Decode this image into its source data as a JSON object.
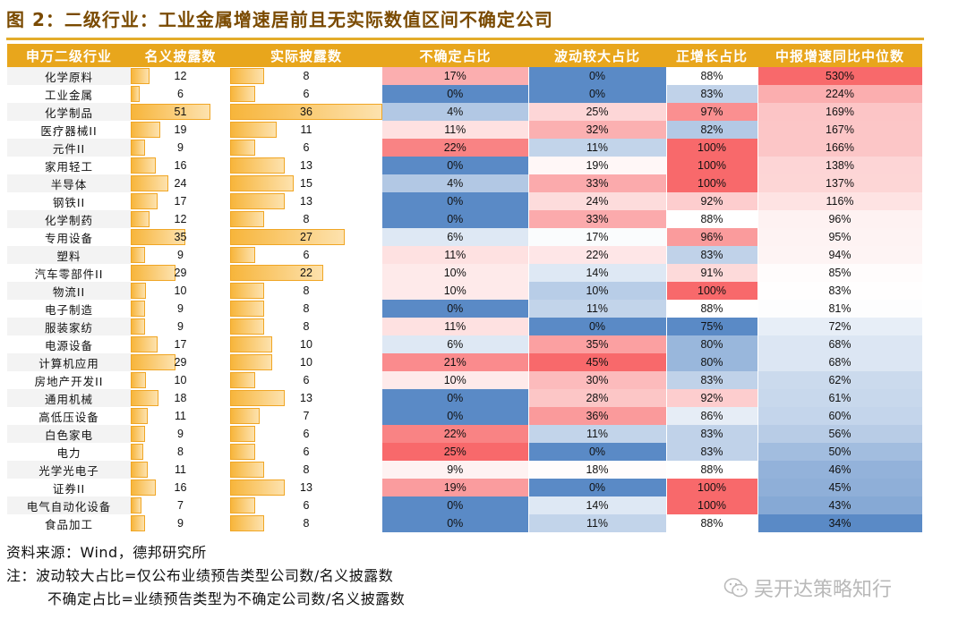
{
  "figure_title": "图 2：二级行业：工业金属增速居前且无实际数值区间不确定公司",
  "footer": {
    "source": "资料来源：Wind，德邦研究所",
    "note1": "注：波动较大占比=仅公布业绩预告类型公司数/名义披露数",
    "note2": "不确定占比=业绩预告类型为不确定公司数/名义披露数"
  },
  "watermark": "吴开达策略知行",
  "colors": {
    "header_bg": "#e8a61c",
    "bar": "#f7b53b",
    "title": "#7a4a00",
    "high": "#f8696b",
    "mid": "#ffffff",
    "low": "#5a8ac6"
  },
  "chart_data": {
    "type": "table",
    "title": "二级行业：工业金属增速居前且无实际数值区间不确定公司",
    "columns": [
      "申万二级行业",
      "名义披露数",
      "实际披露数",
      "不确定占比",
      "波动较大占比",
      "正增长占比",
      "中报增速同比中位数"
    ],
    "rows": [
      {
        "industry": "化学原料",
        "nominal": 12,
        "actual": 8,
        "uncertain": 17,
        "volatile": 0,
        "positive": 88,
        "median": 530
      },
      {
        "industry": "工业金属",
        "nominal": 6,
        "actual": 6,
        "uncertain": 0,
        "volatile": 0,
        "positive": 83,
        "median": 224
      },
      {
        "industry": "化学制品",
        "nominal": 51,
        "actual": 36,
        "uncertain": 4,
        "volatile": 25,
        "positive": 97,
        "median": 169
      },
      {
        "industry": "医疗器械II",
        "nominal": 19,
        "actual": 11,
        "uncertain": 11,
        "volatile": 32,
        "positive": 82,
        "median": 167
      },
      {
        "industry": "元件II",
        "nominal": 9,
        "actual": 6,
        "uncertain": 22,
        "volatile": 11,
        "positive": 100,
        "median": 166
      },
      {
        "industry": "家用轻工",
        "nominal": 16,
        "actual": 13,
        "uncertain": 0,
        "volatile": 19,
        "positive": 100,
        "median": 138
      },
      {
        "industry": "半导体",
        "nominal": 24,
        "actual": 15,
        "uncertain": 4,
        "volatile": 33,
        "positive": 100,
        "median": 137
      },
      {
        "industry": "钢铁II",
        "nominal": 17,
        "actual": 13,
        "uncertain": 0,
        "volatile": 24,
        "positive": 92,
        "median": 116
      },
      {
        "industry": "化学制药",
        "nominal": 12,
        "actual": 8,
        "uncertain": 0,
        "volatile": 33,
        "positive": 88,
        "median": 96
      },
      {
        "industry": "专用设备",
        "nominal": 35,
        "actual": 27,
        "uncertain": 6,
        "volatile": 17,
        "positive": 96,
        "median": 95
      },
      {
        "industry": "塑料",
        "nominal": 9,
        "actual": 6,
        "uncertain": 11,
        "volatile": 22,
        "positive": 83,
        "median": 94
      },
      {
        "industry": "汽车零部件II",
        "nominal": 29,
        "actual": 22,
        "uncertain": 10,
        "volatile": 14,
        "positive": 91,
        "median": 85
      },
      {
        "industry": "物流II",
        "nominal": 10,
        "actual": 8,
        "uncertain": 10,
        "volatile": 10,
        "positive": 100,
        "median": 83
      },
      {
        "industry": "电子制造",
        "nominal": 9,
        "actual": 8,
        "uncertain": 0,
        "volatile": 11,
        "positive": 88,
        "median": 81
      },
      {
        "industry": "服装家纺",
        "nominal": 9,
        "actual": 8,
        "uncertain": 11,
        "volatile": 0,
        "positive": 75,
        "median": 72
      },
      {
        "industry": "电源设备",
        "nominal": 17,
        "actual": 10,
        "uncertain": 6,
        "volatile": 35,
        "positive": 80,
        "median": 68
      },
      {
        "industry": "计算机应用",
        "nominal": 29,
        "actual": 10,
        "uncertain": 21,
        "volatile": 45,
        "positive": 80,
        "median": 68
      },
      {
        "industry": "房地产开发II",
        "nominal": 10,
        "actual": 6,
        "uncertain": 10,
        "volatile": 30,
        "positive": 83,
        "median": 62
      },
      {
        "industry": "通用机械",
        "nominal": 18,
        "actual": 13,
        "uncertain": 0,
        "volatile": 28,
        "positive": 92,
        "median": 61
      },
      {
        "industry": "高低压设备",
        "nominal": 11,
        "actual": 7,
        "uncertain": 0,
        "volatile": 36,
        "positive": 86,
        "median": 60
      },
      {
        "industry": "白色家电",
        "nominal": 9,
        "actual": 6,
        "uncertain": 22,
        "volatile": 11,
        "positive": 83,
        "median": 56
      },
      {
        "industry": "电力",
        "nominal": 8,
        "actual": 6,
        "uncertain": 25,
        "volatile": 0,
        "positive": 83,
        "median": 50
      },
      {
        "industry": "光学光电子",
        "nominal": 11,
        "actual": 8,
        "uncertain": 9,
        "volatile": 18,
        "positive": 88,
        "median": 46
      },
      {
        "industry": "证券II",
        "nominal": 16,
        "actual": 13,
        "uncertain": 19,
        "volatile": 0,
        "positive": 100,
        "median": 45
      },
      {
        "industry": "电气自动化设备",
        "nominal": 7,
        "actual": 6,
        "uncertain": 0,
        "volatile": 14,
        "positive": 100,
        "median": 43
      },
      {
        "industry": "食品加工",
        "nominal": 9,
        "actual": 8,
        "uncertain": 0,
        "volatile": 11,
        "positive": 88,
        "median": 34
      }
    ]
  }
}
